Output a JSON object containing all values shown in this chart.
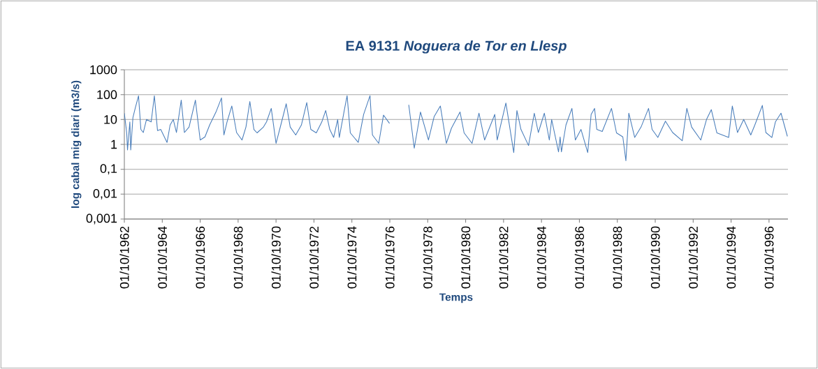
{
  "chart_data": {
    "type": "line",
    "title": "EA 9131 *Noguera de Tor en Llesp*",
    "xlabel": "Temps",
    "ylabel": "log cabal mig diari (m3/s)",
    "series": [
      {
        "color": "#4a7ebb",
        "x": [
          "1962-10-01",
          "1962-11-15",
          "1962-12-01",
          "1963-01-15",
          "1963-02-01",
          "1963-03-15",
          "1963-05-01",
          "1963-07-01",
          "1963-08-15",
          "1963-10-01",
          "1963-12-01",
          "1964-03-01",
          "1964-05-01",
          "1964-07-01",
          "1964-09-01",
          "1965-01-01",
          "1965-03-01",
          "1965-05-01",
          "1965-07-01",
          "1965-10-01",
          "1965-12-01",
          "1966-03-01",
          "1966-07-01",
          "1966-10-01",
          "1967-01-01",
          "1967-04-01",
          "1967-08-01",
          "1967-11-15",
          "1968-01-01",
          "1968-03-01",
          "1968-06-01",
          "1968-09-01",
          "1968-12-15",
          "1969-03-01",
          "1969-05-15",
          "1969-08-01",
          "1969-10-01",
          "1970-02-01",
          "1970-04-01",
          "1970-07-01",
          "1970-10-01",
          "1971-01-01",
          "1971-04-15",
          "1971-07-01",
          "1971-10-15",
          "1972-02-01",
          "1972-05-15",
          "1972-08-01",
          "1972-11-15",
          "1973-03-01",
          "1973-05-15",
          "1973-08-01",
          "1973-10-15",
          "1974-01-01",
          "1974-02-01",
          "1974-05-15",
          "1974-07-01",
          "1974-09-01",
          "1975-02-01",
          "1975-05-15",
          "1975-09-15",
          "1975-11-01",
          "1976-03-01",
          "1976-06-01",
          "1976-09-25",
          "1976-10-01",
          "1977-10-01",
          "1978-01-15",
          "1978-05-15",
          "1978-10-15",
          "1979-02-01",
          "1979-06-01",
          "1979-09-25",
          "1980-01-01",
          "1980-06-15",
          "1980-09-01",
          "1981-02-01",
          "1981-06-15",
          "1981-10-01",
          "1982-04-15",
          "1982-06-01",
          "1982-11-15",
          "1983-04-15",
          "1983-06-15",
          "1983-09-01",
          "1984-01-25",
          "1984-05-15",
          "1984-08-01",
          "1984-11-25",
          "1985-03-01",
          "1985-04-15",
          "1985-08-25",
          "1985-09-25",
          "1985-10-20",
          "1986-01-15",
          "1986-05-10",
          "1986-07-15",
          "1986-11-01",
          "1987-03-10",
          "1987-05-15",
          "1987-07-20",
          "1987-09-01",
          "1987-12-15",
          "1988-06-10",
          "1988-09-15",
          "1989-01-15",
          "1989-03-15",
          "1989-05-10",
          "1989-09-01",
          "1990-01-01",
          "1990-05-25",
          "1990-08-01",
          "1990-11-20",
          "1991-04-15",
          "1991-09-01",
          "1992-03-05",
          "1992-06-01",
          "1992-09-01",
          "1993-02-25",
          "1993-06-15",
          "1993-09-15",
          "1994-01-01",
          "1994-08-15",
          "1994-10-25",
          "1995-02-01",
          "1995-06-01",
          "1995-10-15",
          "1996-01-01",
          "1996-05-25",
          "1996-08-01",
          "1996-11-25",
          "1997-02-01",
          "1997-05-20",
          "1997-09-20"
        ],
        "values": [
          18,
          3,
          0.6,
          8,
          0.6,
          12,
          30,
          90,
          4,
          3,
          10,
          8,
          90,
          3.6,
          4,
          1.2,
          6,
          10,
          3,
          60,
          3,
          5,
          60,
          1.5,
          2,
          6,
          20,
          74,
          2.4,
          8,
          35,
          3,
          1.5,
          5,
          53,
          4,
          2.9,
          5,
          8,
          28,
          1.1,
          6,
          43,
          5,
          2.4,
          6,
          48,
          4,
          2.9,
          8,
          23,
          4,
          1.9,
          10,
          1.9,
          28,
          91,
          2.9,
          1.2,
          16,
          91,
          2.4,
          1.1,
          15,
          7,
          null,
          39,
          0.7,
          20,
          1.5,
          13,
          35,
          1.1,
          4.5,
          20,
          2.9,
          1.1,
          18,
          1.5,
          16,
          1.5,
          46,
          0.47,
          23,
          4,
          0.9,
          18,
          3,
          18,
          1.5,
          10,
          0.5,
          2,
          0.5,
          6,
          28,
          1.5,
          4,
          0.47,
          16,
          28,
          4,
          3.3,
          28,
          2.9,
          2,
          0.22,
          18,
          1.9,
          5,
          28,
          4,
          1.9,
          8.6,
          3,
          1.4,
          28,
          5,
          1.5,
          10,
          25,
          2.9,
          1.9,
          35,
          3,
          10,
          2.4,
          6,
          37,
          3,
          1.9,
          8,
          18,
          2.1
        ]
      }
    ],
    "xlim": [
      "1962-10-01",
      "1997-10-01"
    ],
    "xticks": [
      {
        "value": "1962-10-01",
        "label": "01/10/1962"
      },
      {
        "value": "1964-10-01",
        "label": "01/10/1964"
      },
      {
        "value": "1966-10-01",
        "label": "01/10/1966"
      },
      {
        "value": "1968-10-01",
        "label": "01/10/1968"
      },
      {
        "value": "1970-10-01",
        "label": "01/10/1970"
      },
      {
        "value": "1972-10-01",
        "label": "01/10/1972"
      },
      {
        "value": "1974-10-01",
        "label": "01/10/1974"
      },
      {
        "value": "1976-10-01",
        "label": "01/10/1976"
      },
      {
        "value": "1978-10-01",
        "label": "01/10/1978"
      },
      {
        "value": "1980-10-01",
        "label": "01/10/1980"
      },
      {
        "value": "1982-10-01",
        "label": "01/10/1982"
      },
      {
        "value": "1984-10-01",
        "label": "01/10/1984"
      },
      {
        "value": "1986-10-01",
        "label": "01/10/1986"
      },
      {
        "value": "1988-10-01",
        "label": "01/10/1988"
      },
      {
        "value": "1990-10-01",
        "label": "01/10/1990"
      },
      {
        "value": "1992-10-01",
        "label": "01/10/1992"
      },
      {
        "value": "1994-10-01",
        "label": "01/10/1994"
      },
      {
        "value": "1996-10-01",
        "label": "01/10/1996"
      }
    ],
    "ylim": [
      0.001,
      1000
    ],
    "yticks": [
      {
        "value": 0.001,
        "label": "0,001"
      },
      {
        "value": 0.01,
        "label": "0,01"
      },
      {
        "value": 0.1,
        "label": "0,1"
      },
      1,
      10,
      100,
      1000
    ],
    "log": "y",
    "grid": "y",
    "marker": "none"
  }
}
